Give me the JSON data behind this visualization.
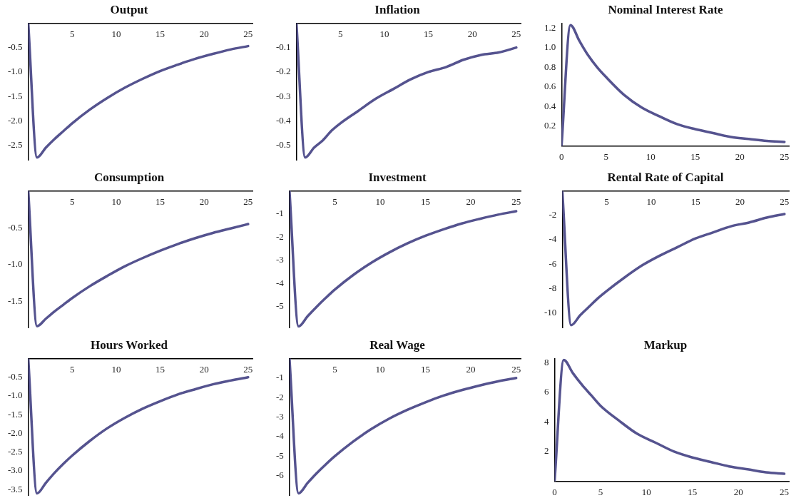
{
  "chart_data": [
    {
      "type": "line",
      "title": "Output",
      "x": [
        0,
        1,
        2,
        3,
        4,
        5,
        7,
        9,
        11,
        13,
        15,
        17,
        19,
        21,
        23,
        25
      ],
      "series": [
        {
          "color": "#55538f",
          "values": [
            0,
            -2.75,
            -2.55,
            -2.37,
            -2.21,
            -2.05,
            -1.77,
            -1.53,
            -1.32,
            -1.14,
            -0.98,
            -0.85,
            -0.73,
            -0.63,
            -0.54,
            -0.47
          ]
        }
      ],
      "xlim": [
        0,
        25.5
      ],
      "xticks": [
        5,
        10,
        15,
        20,
        25
      ],
      "ylim": [
        -2.8,
        0
      ],
      "yticks": [
        {
          "value": -2.5,
          "label": "-2.5"
        },
        {
          "value": -2,
          "label": "-2.0"
        },
        {
          "value": -1.5,
          "label": "-1.5"
        },
        {
          "value": -1,
          "label": "-1.0"
        },
        {
          "value": -0.5,
          "label": "-0.5"
        }
      ],
      "grid": false,
      "marker": "none"
    },
    {
      "type": "line",
      "title": "Inflation",
      "x": [
        0,
        1,
        2,
        3,
        4,
        5,
        7,
        9,
        11,
        13,
        15,
        17,
        19,
        21,
        23,
        25
      ],
      "series": [
        {
          "color": "#55538f",
          "values": [
            0,
            -0.55,
            -0.51,
            -0.48,
            -0.44,
            -0.41,
            -0.36,
            -0.31,
            -0.27,
            -0.23,
            -0.2,
            -0.18,
            -0.15,
            -0.13,
            -0.12,
            -0.1
          ]
        }
      ],
      "xlim": [
        0,
        25.5
      ],
      "xticks": [
        5,
        10,
        15,
        20,
        25
      ],
      "ylim": [
        -0.56,
        0
      ],
      "yticks": [
        -0.5,
        -0.4,
        -0.3,
        -0.2,
        -0.1
      ],
      "grid": false,
      "marker": "none"
    },
    {
      "type": "line",
      "title": "Nominal Interest Rate",
      "x": [
        0,
        1,
        2,
        3,
        4,
        5,
        7,
        9,
        11,
        13,
        15,
        17,
        19,
        21,
        23,
        25
      ],
      "series": [
        {
          "color": "#55538f",
          "values": [
            0,
            1.23,
            1.07,
            0.92,
            0.8,
            0.7,
            0.52,
            0.39,
            0.3,
            0.22,
            0.17,
            0.13,
            0.09,
            0.07,
            0.05,
            0.04
          ]
        }
      ],
      "xlim": [
        0,
        25.5
      ],
      "xticks": [
        0,
        5,
        10,
        15,
        20,
        25
      ],
      "ylim": [
        0,
        1.25
      ],
      "yticks": [
        {
          "value": 0.2,
          "label": "0.2"
        },
        {
          "value": 0.4,
          "label": "0.4"
        },
        {
          "value": 0.6,
          "label": "0.6"
        },
        {
          "value": 0.8,
          "label": "0.8"
        },
        {
          "value": 1,
          "label": "1.0"
        },
        {
          "value": 1.2,
          "label": "1.2"
        }
      ],
      "grid": false,
      "marker": "none"
    },
    {
      "type": "line",
      "title": "Consumption",
      "x": [
        0,
        1,
        2,
        3,
        4,
        5,
        7,
        9,
        11,
        13,
        15,
        17,
        19,
        21,
        23,
        25
      ],
      "series": [
        {
          "color": "#55538f",
          "values": [
            0,
            -1.83,
            -1.73,
            -1.63,
            -1.54,
            -1.45,
            -1.29,
            -1.15,
            -1.02,
            -0.91,
            -0.81,
            -0.72,
            -0.64,
            -0.57,
            -0.51,
            -0.45
          ]
        }
      ],
      "xlim": [
        0,
        25.5
      ],
      "xticks": [
        5,
        10,
        15,
        20,
        25
      ],
      "ylim": [
        -1.85,
        0
      ],
      "yticks": [
        {
          "value": -1.5,
          "label": "-1.5"
        },
        {
          "value": -1,
          "label": "-1.0"
        },
        {
          "value": -0.5,
          "label": "-0.5"
        }
      ],
      "grid": false,
      "marker": "none"
    },
    {
      "type": "line",
      "title": "Investment",
      "x": [
        0,
        1,
        2,
        3,
        4,
        5,
        7,
        9,
        11,
        13,
        15,
        17,
        19,
        21,
        23,
        25
      ],
      "series": [
        {
          "color": "#55538f",
          "values": [
            0,
            -5.85,
            -5.41,
            -5,
            -4.62,
            -4.26,
            -3.64,
            -3.11,
            -2.66,
            -2.27,
            -1.94,
            -1.66,
            -1.41,
            -1.21,
            -1.03,
            -0.88
          ]
        }
      ],
      "xlim": [
        0,
        25.5
      ],
      "xticks": [
        5,
        10,
        15,
        20,
        25
      ],
      "ylim": [
        -5.9,
        0
      ],
      "yticks": [
        -5,
        -4,
        -3,
        -2,
        -1
      ],
      "grid": false,
      "marker": "none"
    },
    {
      "type": "line",
      "title": "Rental Rate of Capital",
      "x": [
        0,
        1,
        2,
        3,
        4,
        5,
        7,
        9,
        11,
        13,
        15,
        17,
        19,
        21,
        23,
        25
      ],
      "series": [
        {
          "color": "#55538f",
          "values": [
            0,
            -11,
            -10.2,
            -9.5,
            -8.8,
            -8.2,
            -7.1,
            -6.1,
            -5.3,
            -4.6,
            -3.9,
            -3.4,
            -2.9,
            -2.6,
            -2.2,
            -1.9
          ]
        }
      ],
      "xlim": [
        0,
        25.5
      ],
      "xticks": [
        5,
        10,
        15,
        20,
        25
      ],
      "ylim": [
        -11.2,
        0
      ],
      "yticks": [
        -10,
        -8,
        -6,
        -4,
        -2
      ],
      "grid": false,
      "marker": "none"
    },
    {
      "type": "line",
      "title": "Hours Worked",
      "x": [
        0,
        1,
        2,
        3,
        4,
        5,
        7,
        9,
        11,
        13,
        15,
        17,
        19,
        21,
        23,
        25
      ],
      "series": [
        {
          "color": "#55538f",
          "values": [
            0,
            -3.6,
            -3.32,
            -3.05,
            -2.81,
            -2.59,
            -2.2,
            -1.86,
            -1.58,
            -1.34,
            -1.14,
            -0.96,
            -0.82,
            -0.69,
            -0.59,
            -0.5
          ]
        }
      ],
      "xlim": [
        0,
        25.5
      ],
      "xticks": [
        5,
        10,
        15,
        20,
        25
      ],
      "ylim": [
        -3.65,
        0
      ],
      "yticks": [
        {
          "value": -3.5,
          "label": "-3.5"
        },
        {
          "value": -3,
          "label": "-3.0"
        },
        {
          "value": -2.5,
          "label": "-2.5"
        },
        {
          "value": -2,
          "label": "-2.0"
        },
        {
          "value": -1.5,
          "label": "-1.5"
        },
        {
          "value": -1,
          "label": "-1.0"
        },
        {
          "value": -0.5,
          "label": "-0.5"
        }
      ],
      "grid": false,
      "marker": "none"
    },
    {
      "type": "line",
      "title": "Real Wage",
      "x": [
        0,
        1,
        2,
        3,
        4,
        5,
        7,
        9,
        11,
        13,
        15,
        17,
        19,
        21,
        23,
        25
      ],
      "series": [
        {
          "color": "#55538f",
          "values": [
            0,
            -6.9,
            -6.37,
            -5.87,
            -5.42,
            -5,
            -4.26,
            -3.62,
            -3.08,
            -2.63,
            -2.24,
            -1.9,
            -1.62,
            -1.38,
            -1.17,
            -1
          ]
        }
      ],
      "xlim": [
        0,
        25.5
      ],
      "xticks": [
        5,
        10,
        15,
        20,
        25
      ],
      "ylim": [
        -7,
        0
      ],
      "yticks": [
        -6,
        -5,
        -4,
        -3,
        -2,
        -1
      ],
      "grid": false,
      "marker": "none"
    },
    {
      "type": "line",
      "title": "Markup",
      "x": [
        0,
        1,
        2,
        3,
        4,
        5,
        7,
        9,
        11,
        13,
        15,
        17,
        19,
        21,
        23,
        25
      ],
      "series": [
        {
          "color": "#55538f",
          "values": [
            0,
            8.2,
            7.3,
            6.5,
            5.8,
            5.1,
            4.1,
            3.2,
            2.6,
            2,
            1.6,
            1.3,
            1,
            0.8,
            0.6,
            0.5
          ]
        }
      ],
      "xlim": [
        0,
        25.5
      ],
      "xticks": [
        0,
        5,
        10,
        15,
        20,
        25
      ],
      "ylim": [
        0,
        8.3
      ],
      "yticks": [
        2,
        4,
        6,
        8
      ],
      "grid": false,
      "marker": "none"
    }
  ]
}
